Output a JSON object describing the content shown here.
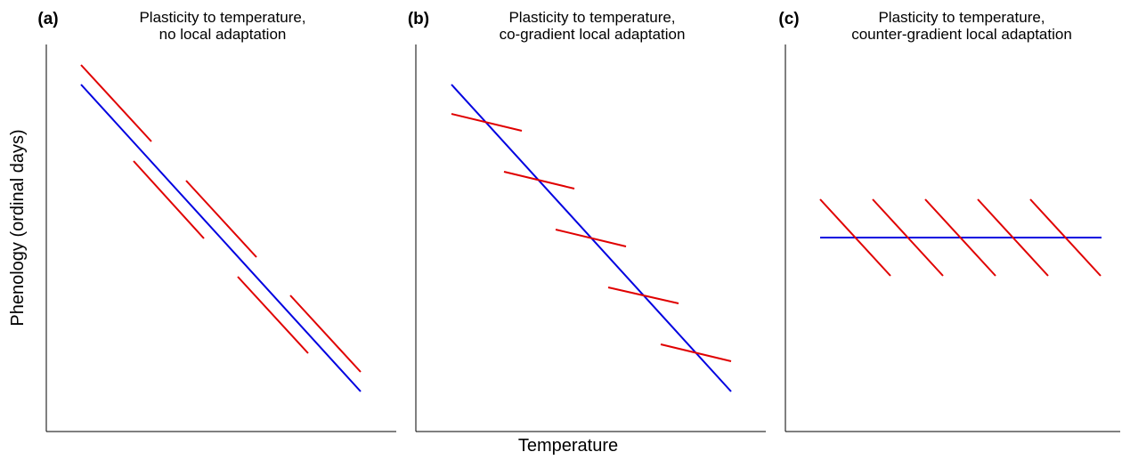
{
  "figure": {
    "ylabel": "Phenology (ordinal days)",
    "xlabel": "Temperature",
    "colors": {
      "population_line": "#e00000",
      "species_line": "#0000e0",
      "axis": "#000000"
    }
  },
  "panels": [
    {
      "letter": "(a)",
      "title_line1": "Plasticity to temperature,",
      "title_line2": "no local adaptation",
      "pattern": "parallel-slopes"
    },
    {
      "letter": "(b)",
      "title_line1": "Plasticity to temperature,",
      "title_line2": "co-gradient local adaptation",
      "pattern": "shallow-population-slopes"
    },
    {
      "letter": "(c)",
      "title_line1": "Plasticity to temperature,",
      "title_line2": "counter-gradient local adaptation",
      "pattern": "flat-species-line"
    }
  ]
}
